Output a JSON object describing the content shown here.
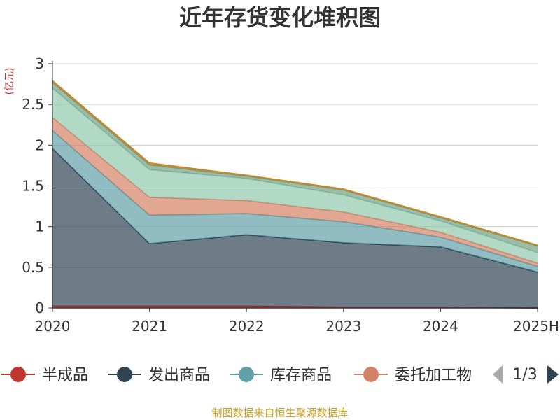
{
  "chart_data": {
    "type": "area",
    "stacked": true,
    "title": "近年存货变化堆积图",
    "unit_label": "(亿元)",
    "x": [
      "2020",
      "2021",
      "2022",
      "2023",
      "2024",
      "2025H"
    ],
    "ylim": [
      0,
      3
    ],
    "yticks": [
      "0",
      "0.5",
      "1",
      "1.5",
      "2",
      "2.5",
      "3"
    ],
    "grid": true,
    "series": [
      {
        "name": "半成品",
        "color": "#c23531",
        "values": [
          0.02,
          0.02,
          0.02,
          0.01,
          0.01,
          0.0
        ]
      },
      {
        "name": "发出商品",
        "color": "#2f4554",
        "values": [
          1.94,
          0.77,
          0.88,
          0.79,
          0.74,
          0.44
        ]
      },
      {
        "name": "库存商品",
        "color": "#61a0a8",
        "values": [
          0.22,
          0.35,
          0.26,
          0.26,
          0.12,
          0.07
        ]
      },
      {
        "name": "委托加工物资",
        "color": "#d48265",
        "values": [
          0.16,
          0.22,
          0.16,
          0.12,
          0.06,
          0.04
        ]
      },
      {
        "name": "",
        "color": "#91c7ae",
        "values": [
          0.36,
          0.34,
          0.27,
          0.21,
          0.14,
          0.13
        ]
      },
      {
        "name": "",
        "color": "#749f83",
        "values": [
          0.07,
          0.06,
          0.03,
          0.06,
          0.04,
          0.08
        ]
      },
      {
        "name": "",
        "color": "#ca8622",
        "values": [
          0.02,
          0.02,
          0.01,
          0.01,
          0.01,
          0.01
        ]
      }
    ],
    "legend_visible": [
      "半成品",
      "发出商品",
      "库存商品",
      "委托加工物"
    ],
    "legend_page": "1/3"
  },
  "source": "制图数据来自恒生聚源数据库"
}
